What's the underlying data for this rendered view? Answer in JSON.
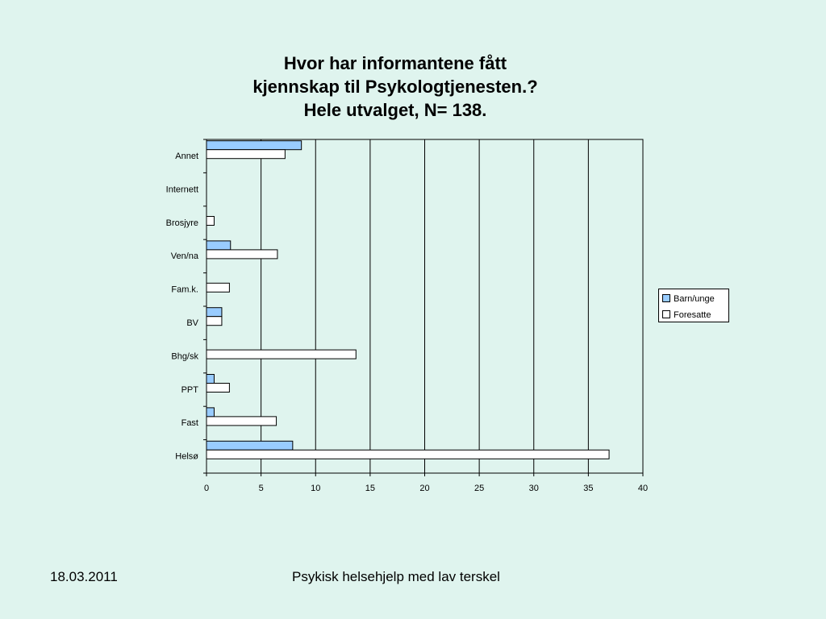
{
  "slide": {
    "date": "18.03.2011",
    "footer": "Psykisk helsehjelp med lav terskel"
  },
  "chart_data": {
    "type": "bar",
    "orientation": "horizontal",
    "title": [
      "Hvor har informantene fått",
      "kjennskap til Psykologtjenesten.?",
      "Hele utvalget, N= 138."
    ],
    "categories": [
      "Annet",
      "Internett",
      "Brosjyre",
      "Ven/na",
      "Fam.k.",
      "BV",
      "Bhg/sk",
      "PPT",
      "Fast",
      "Helsø"
    ],
    "series": [
      {
        "name": "Barn/unge",
        "color": "#99ccff",
        "values": [
          8.7,
          0,
          0,
          2.2,
          0,
          1.4,
          0,
          0.7,
          0.7,
          7.9
        ]
      },
      {
        "name": "Foresatte",
        "color": "#ffffff",
        "values": [
          7.2,
          0,
          0.7,
          6.5,
          2.1,
          1.4,
          13.7,
          2.1,
          6.4,
          36.9
        ]
      }
    ],
    "xlim": [
      0,
      40
    ],
    "xticks": [
      0,
      5,
      10,
      15,
      20,
      25,
      30,
      35,
      40
    ],
    "grid": "vertical",
    "legend": "right"
  }
}
